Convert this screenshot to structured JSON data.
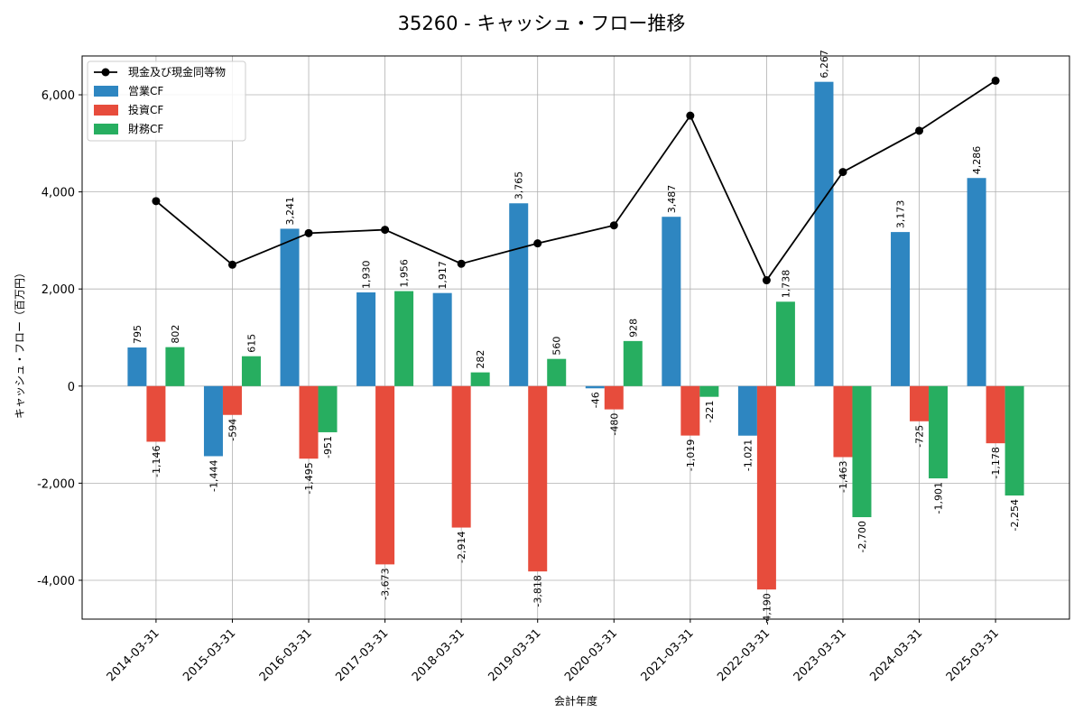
{
  "chart_data": {
    "type": "bar",
    "title": "35260 - キャッシュ・フロー推移",
    "xlabel": "会計年度",
    "ylabel": "キャッシュ・フロー（百万円）",
    "ylim": [
      -4800,
      6800
    ],
    "yticks": [
      -4000,
      -2000,
      0,
      2000,
      4000,
      6000
    ],
    "ytick_labels": [
      "-4,000",
      "-2,000",
      "0",
      "2,000",
      "4,000",
      "6,000"
    ],
    "grid": true,
    "legend_position": "top-left",
    "categories": [
      "2014-03-31",
      "2015-03-31",
      "2016-03-31",
      "2017-03-31",
      "2018-03-31",
      "2019-03-31",
      "2020-03-31",
      "2021-03-31",
      "2022-03-31",
      "2023-03-31",
      "2024-03-31",
      "2025-03-31"
    ],
    "series": [
      {
        "name": "営業CF",
        "kind": "bar",
        "color": "#2e86c1",
        "values": [
          795,
          -1444,
          3241,
          1930,
          1917,
          3765,
          -46,
          3487,
          -1021,
          6267,
          3173,
          4286
        ],
        "labels": [
          "795",
          "-1,444",
          "3,241",
          "1,930",
          "1,917",
          "3,765",
          "-46",
          "3,487",
          "-1,021",
          "6,267",
          "3,173",
          "4,286"
        ]
      },
      {
        "name": "投資CF",
        "kind": "bar",
        "color": "#e74c3c",
        "values": [
          -1146,
          -594,
          -1495,
          -3673,
          -2914,
          -3818,
          -480,
          -1019,
          -4190,
          -1463,
          -725,
          -1178
        ],
        "labels": [
          "-1,146",
          "-594",
          "-1,495",
          "-3,673",
          "-2,914",
          "-3,818",
          "-480",
          "-1,019",
          "-4,190",
          "-1,463",
          "-725",
          "-1,178"
        ]
      },
      {
        "name": "財務CF",
        "kind": "bar",
        "color": "#27ae60",
        "values": [
          802,
          615,
          -951,
          1956,
          282,
          560,
          928,
          -221,
          1738,
          -2700,
          -1901,
          -2254
        ],
        "labels": [
          "802",
          "615",
          "-951",
          "1,956",
          "282",
          "560",
          "928",
          "-221",
          "1,738",
          "-2,700",
          "-1,901",
          "-2,254"
        ]
      },
      {
        "name": "現金及び現金同等物",
        "kind": "line",
        "color": "#000000",
        "values": [
          3810,
          2500,
          3150,
          3220,
          2520,
          2940,
          3310,
          5570,
          2180,
          4410,
          5260,
          6290
        ]
      }
    ]
  }
}
